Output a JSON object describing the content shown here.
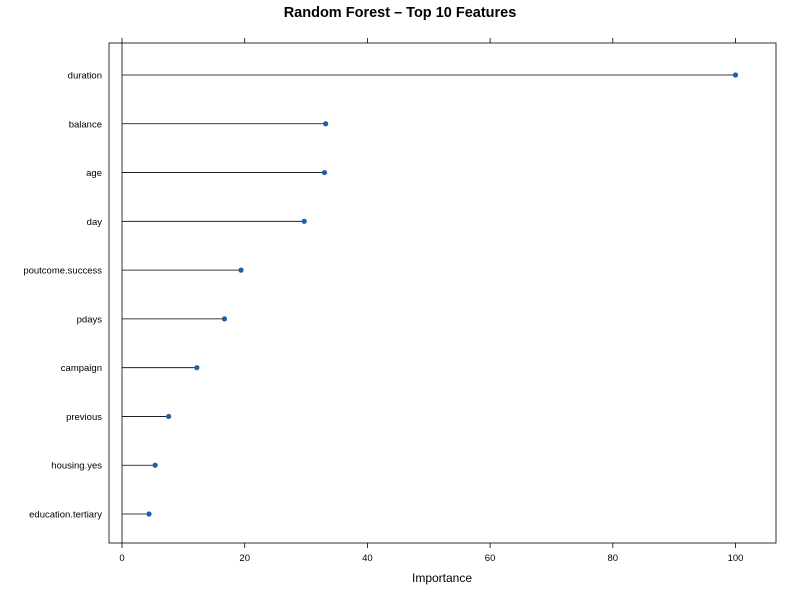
{
  "chart_data": {
    "type": "dot",
    "title": "Random Forest – Top 10 Features",
    "xlabel": "Importance",
    "ylabel": "",
    "xlim": [
      0,
      100
    ],
    "x_ticks": [
      0,
      20,
      40,
      60,
      80,
      100
    ],
    "categories": [
      "duration",
      "balance",
      "age",
      "day",
      "poutcome.success",
      "pdays",
      "campaign",
      "previous",
      "housing.yes",
      "education.tertiary"
    ],
    "values": [
      100,
      33.2,
      33.0,
      29.7,
      19.4,
      16.7,
      12.2,
      7.6,
      5.4,
      4.4
    ],
    "point_color": "#1f5fa8",
    "line_color": "#000000",
    "grid": false,
    "legend": "none"
  }
}
